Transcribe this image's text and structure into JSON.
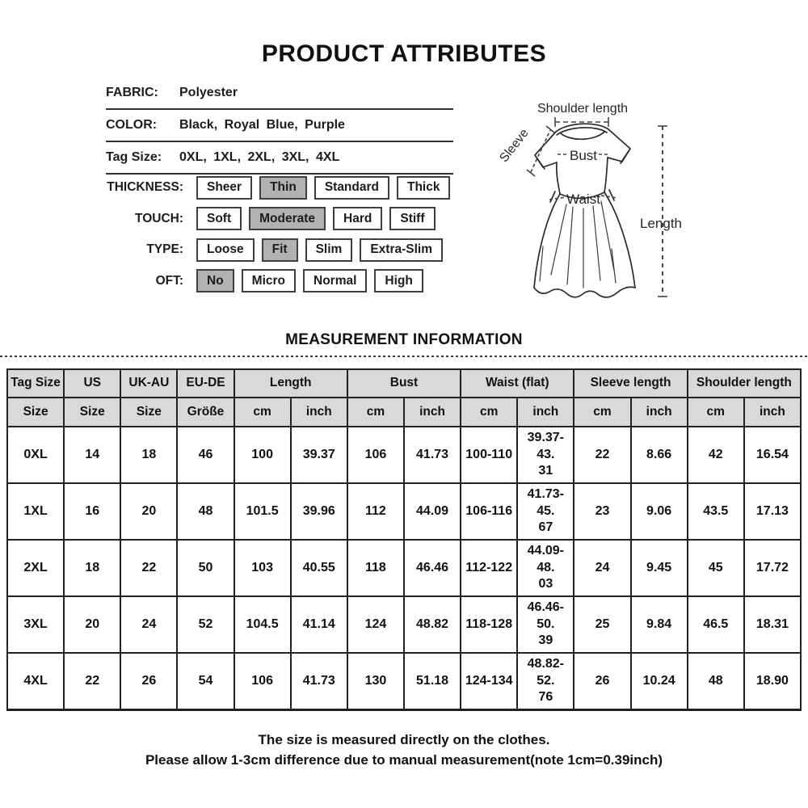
{
  "header": {
    "title": "PRODUCT ATTRIBUTES"
  },
  "attributes": {
    "rows": [
      {
        "label": "FABRIC:",
        "value": "Polyester"
      },
      {
        "label": "COLOR:",
        "value": "Black, Royal Blue, Purple"
      },
      {
        "label": "Tag Size:",
        "value": "0XL, 1XL, 2XL, 3XL, 4XL"
      }
    ],
    "option_rows": [
      {
        "label": "THICKNESS:",
        "options": [
          {
            "label": "Sheer",
            "selected": false
          },
          {
            "label": "Thin",
            "selected": true
          },
          {
            "label": "Standard",
            "selected": false
          },
          {
            "label": "Thick",
            "selected": false
          }
        ]
      },
      {
        "label": "TOUCH:",
        "options": [
          {
            "label": "Soft",
            "selected": false
          },
          {
            "label": "Moderate",
            "selected": true
          },
          {
            "label": "Hard",
            "selected": false
          },
          {
            "label": "Stiff",
            "selected": false
          }
        ]
      },
      {
        "label": "TYPE:",
        "options": [
          {
            "label": "Loose",
            "selected": false
          },
          {
            "label": "Fit",
            "selected": true
          },
          {
            "label": "Slim",
            "selected": false
          },
          {
            "label": "Extra-Slim",
            "selected": false
          }
        ]
      },
      {
        "label": "OFT:",
        "options": [
          {
            "label": "No",
            "selected": true
          },
          {
            "label": "Micro",
            "selected": false
          },
          {
            "label": "Normal",
            "selected": false
          },
          {
            "label": "High",
            "selected": false
          }
        ]
      }
    ]
  },
  "diagram": {
    "labels": {
      "shoulder": "Shoulder length",
      "sleeve": "Sleeve",
      "bust": "Bust",
      "waist": "Waist",
      "length": "Length"
    }
  },
  "measurement": {
    "title": "MEASUREMENT INFORMATION",
    "table": {
      "groups": [
        {
          "label": "Tag Size",
          "span": 1
        },
        {
          "label": "US",
          "span": 1
        },
        {
          "label": "UK-AU",
          "span": 1
        },
        {
          "label": "EU-DE",
          "span": 1
        },
        {
          "label": "Length",
          "span": 2
        },
        {
          "label": "Bust",
          "span": 2
        },
        {
          "label": "Waist (flat)",
          "span": 2
        },
        {
          "label": "Sleeve length",
          "span": 2
        },
        {
          "label": "Shoulder length",
          "span": 2
        }
      ],
      "sub_headers": [
        "Size",
        "Size",
        "Size",
        "Größe",
        "cm",
        "inch",
        "cm",
        "inch",
        "cm",
        "inch",
        "cm",
        "inch",
        "cm",
        "inch"
      ],
      "rows": [
        [
          "0XL",
          "14",
          "18",
          "46",
          "100",
          "39.37",
          "106",
          "41.73",
          "100-110",
          "39.37-43.\n31",
          "22",
          "8.66",
          "42",
          "16.54"
        ],
        [
          "1XL",
          "16",
          "20",
          "48",
          "101.5",
          "39.96",
          "112",
          "44.09",
          "106-116",
          "41.73-45.\n67",
          "23",
          "9.06",
          "43.5",
          "17.13"
        ],
        [
          "2XL",
          "18",
          "22",
          "50",
          "103",
          "40.55",
          "118",
          "46.46",
          "112-122",
          "44.09-48.\n03",
          "24",
          "9.45",
          "45",
          "17.72"
        ],
        [
          "3XL",
          "20",
          "24",
          "52",
          "104.5",
          "41.14",
          "124",
          "48.82",
          "118-128",
          "46.46-50.\n39",
          "25",
          "9.84",
          "46.5",
          "18.31"
        ],
        [
          "4XL",
          "22",
          "26",
          "54",
          "106",
          "41.73",
          "130",
          "51.18",
          "124-134",
          "48.82-52.\n76",
          "26",
          "10.24",
          "48",
          "18.90"
        ]
      ]
    }
  },
  "notes": [
    "The size is measured directly on the clothes.",
    "Please allow 1-3cm difference due to manual measurement(note 1cm=0.39inch)"
  ],
  "colors": {
    "selected_chip": "#b2b2b2",
    "table_header_bg": "#d9d9d9",
    "grid_border": "#222222"
  }
}
